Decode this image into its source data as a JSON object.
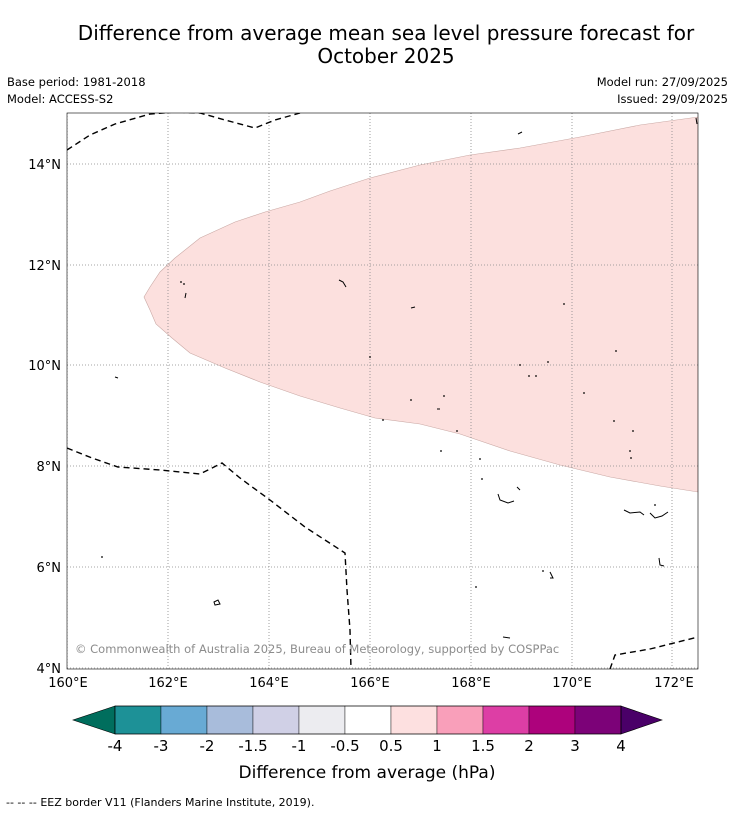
{
  "title_line1": "Difference from average mean sea level pressure forecast for",
  "title_line2": "October 2025",
  "meta": {
    "base_period": "Base period: 1981-2018",
    "model": "Model: ACCESS-S2",
    "model_run": "Model run: 27/09/2025",
    "issued": "Issued: 29/09/2025"
  },
  "map": {
    "lat_labels": [
      "4°N",
      "6°N",
      "8°N",
      "10°N",
      "12°N",
      "14°N"
    ],
    "lon_labels": [
      "160°E",
      "162°E",
      "164°E",
      "166°E",
      "168°E",
      "170°E",
      "172°E"
    ],
    "copyright": "© Commonwealth of Australia 2025, Bureau of Meteorology, supported by COSPPac",
    "anomaly_region_color": "#fce0de",
    "anomaly_region_category": "0.5 to 1"
  },
  "colorbar": {
    "ticks": [
      "-4",
      "-3",
      "-2",
      "-1.5",
      "-1",
      "-0.5",
      "0.5",
      "1",
      "1.5",
      "2",
      "3",
      "4"
    ],
    "colors": [
      "#006e5d",
      "#1d9197",
      "#68aad4",
      "#a8bcdb",
      "#d0d0e6",
      "#ececf0",
      "#ffffff",
      "#fde0e0",
      "#f99fba",
      "#dd3ea5",
      "#ad027c",
      "#7c0278",
      "#4a0068"
    ],
    "label": "Difference from average (hPa)"
  },
  "legend": {
    "line_symbol": "--  --  --",
    "eez_text": "EEZ border V11 (Flanders Marine Institute, 2019)."
  }
}
